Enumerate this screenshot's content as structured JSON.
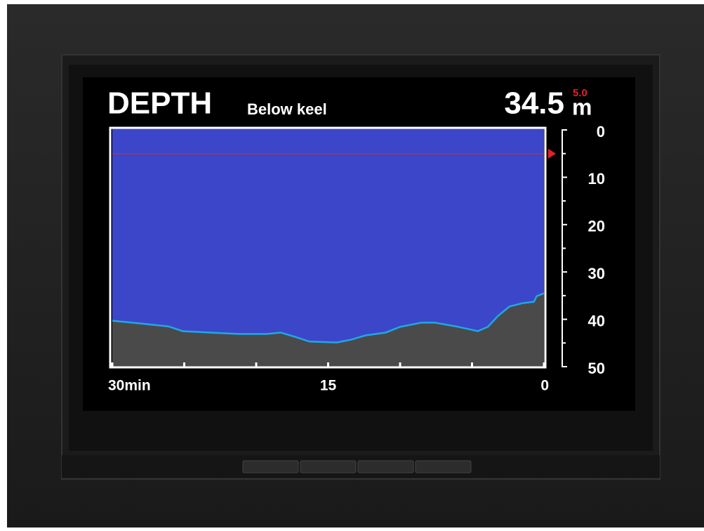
{
  "chart_data": {
    "type": "area",
    "title": "DEPTH",
    "subtitle": "Below keel",
    "current_value": 34.5,
    "unit": "m",
    "alarm": {
      "value": 5,
      "label": "5.0"
    },
    "x": [
      30,
      28.0,
      26.1,
      25.1,
      23.2,
      21.2,
      19.3,
      18.3,
      17.3,
      16.3,
      14.4,
      13.4,
      12.4,
      11.0,
      10.0,
      8.5,
      7.6,
      6.1,
      4.6,
      3.9,
      3.2,
      2.4,
      1.5,
      0.7,
      0.5,
      0
    ],
    "values": [
      40.3,
      40.9,
      41.5,
      42.5,
      42.8,
      43.1,
      43.1,
      42.8,
      43.7,
      44.7,
      44.9,
      44.3,
      43.4,
      42.8,
      41.6,
      40.7,
      40.7,
      41.5,
      42.5,
      41.6,
      39.3,
      37.3,
      36.6,
      36.3,
      35.1,
      34.5
    ],
    "xlim": [
      30,
      0
    ],
    "xticks": [
      {
        "value": 30,
        "label": "30min"
      },
      15,
      0
    ],
    "xminor_ticks": [
      25,
      20,
      10,
      5
    ],
    "ylim": [
      0,
      50
    ],
    "yticks": [
      0,
      10,
      20,
      30,
      40,
      50
    ],
    "yminor_ticks": [
      5,
      15,
      25,
      35,
      45
    ],
    "water_color": "#3c46c8",
    "bottom_color": "#4a4a4a",
    "line_color": "#1fa8e6",
    "alarm_color": "#e3202b"
  }
}
